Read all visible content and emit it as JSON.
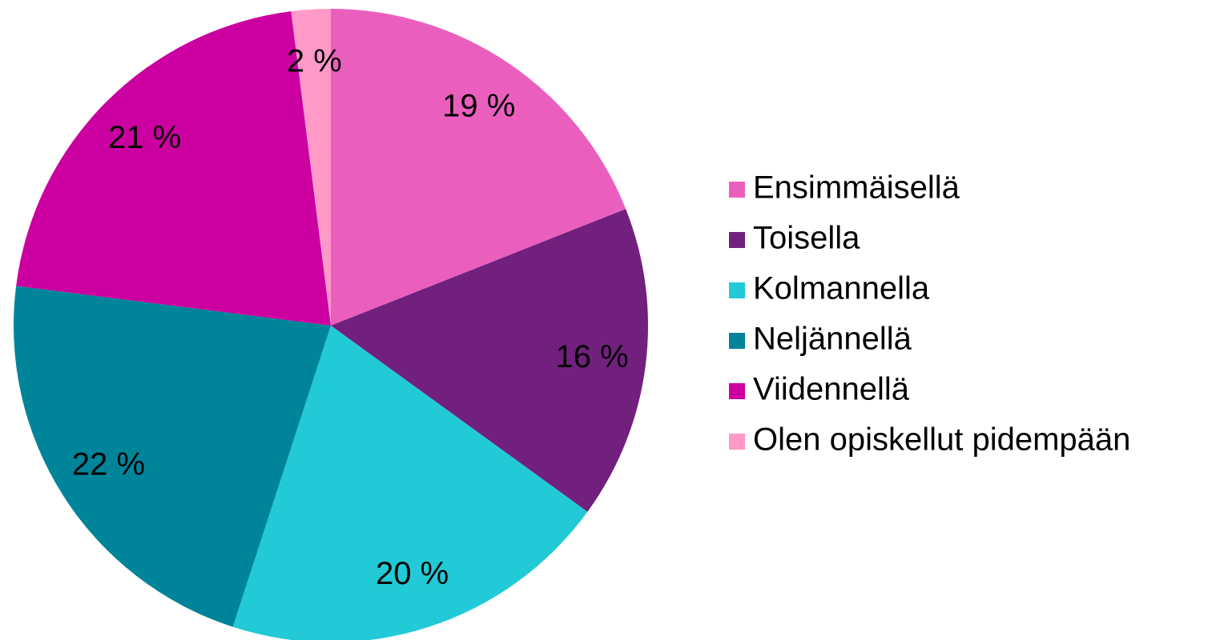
{
  "chart_data": {
    "type": "pie",
    "categories": [
      "Ensimmäisellä",
      "Toisella",
      "Kolmannella",
      "Neljännellä",
      "Viidennellä",
      "Olen opiskellut pidempään"
    ],
    "values": [
      19,
      16,
      20,
      22,
      21,
      2
    ],
    "value_labels": [
      "19 %",
      "16 %",
      "20 %",
      "22 %",
      "21 %",
      "2 %"
    ],
    "colors": [
      "#ea5fbe",
      "#71207e",
      "#21cad6",
      "#00849a",
      "#cc00a0",
      "#ff99c8"
    ],
    "legend": "right"
  }
}
